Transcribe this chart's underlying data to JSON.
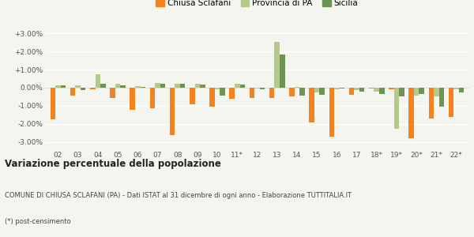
{
  "categories": [
    "02",
    "03",
    "04",
    "05",
    "06",
    "07",
    "08",
    "09",
    "10",
    "11*",
    "12",
    "13",
    "14",
    "15",
    "16",
    "17",
    "18*",
    "19*",
    "20*",
    "21*",
    "22*"
  ],
  "chiusa": [
    -1.75,
    -0.45,
    -0.1,
    -0.55,
    -1.2,
    -1.15,
    -2.6,
    -0.9,
    -1.05,
    -0.6,
    -0.55,
    -0.55,
    -0.5,
    -1.9,
    -2.7,
    -0.4,
    -0.05,
    -0.1,
    -2.8,
    -1.7,
    -1.6
  ],
  "provincia": [
    0.12,
    0.15,
    0.75,
    0.2,
    0.1,
    0.25,
    0.2,
    0.2,
    -0.1,
    0.22,
    -0.05,
    2.55,
    0.05,
    -0.25,
    -0.1,
    -0.15,
    -0.2,
    -2.25,
    -0.45,
    -0.5,
    -0.1
  ],
  "sicilia": [
    0.12,
    -0.15,
    0.2,
    0.12,
    0.05,
    0.2,
    0.2,
    0.18,
    -0.45,
    0.18,
    -0.1,
    1.85,
    -0.45,
    -0.4,
    -0.05,
    -0.2,
    -0.35,
    -0.5,
    -0.35,
    -1.05,
    -0.25
  ],
  "color_chiusa": "#f4821e",
  "color_provincia": "#b5c98a",
  "color_sicilia": "#6e9454",
  "background": "#f5f5f0",
  "grid_color": "#e8e8e8",
  "title": "Variazione percentuale della popolazione",
  "subtitle": "COMUNE DI CHIUSA SCLAFANI (PA) - Dati ISTAT al 31 dicembre di ogni anno - Elaborazione TUTTITALIA.IT",
  "footnote": "(*) post-censimento",
  "ylim": [
    -3.4,
    3.4
  ],
  "yticks": [
    -3.0,
    -2.0,
    -1.0,
    0.0,
    1.0,
    2.0,
    3.0
  ]
}
